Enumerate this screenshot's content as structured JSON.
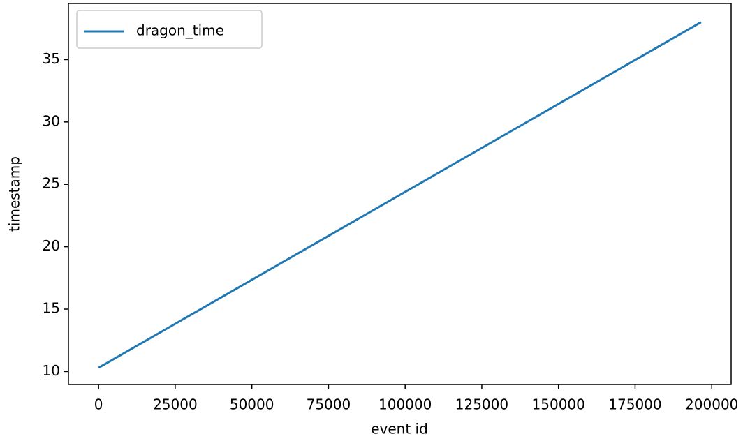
{
  "chart_data": {
    "type": "line",
    "x_label": "event id",
    "y_label": "timestamp",
    "x": [
      0,
      196500
    ],
    "series": [
      {
        "name": "dragon_time",
        "color": "#1f77b4",
        "values": [
          10.3,
          38.0
        ]
      }
    ],
    "xlim": [
      -9825,
      206325
    ],
    "xticks": [
      0,
      25000,
      50000,
      75000,
      100000,
      125000,
      150000,
      175000,
      200000
    ],
    "ylim": [
      8.96,
      39.5
    ],
    "yticks": [
      10,
      15,
      20,
      25,
      30,
      35
    ],
    "legend": "upper left",
    "grid": false
  }
}
